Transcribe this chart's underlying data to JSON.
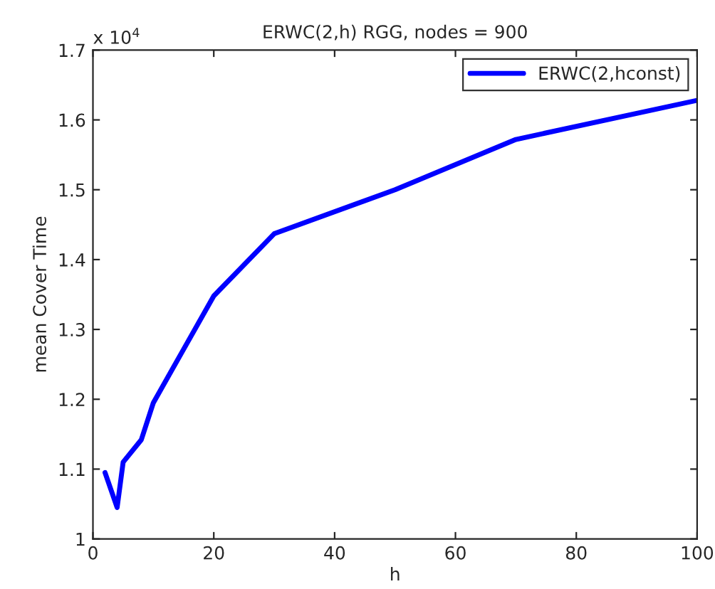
{
  "chart_data": {
    "type": "line",
    "title": "ERWC(2,h) RGG, nodes = 900",
    "xlabel": "h",
    "ylabel": "mean Cover Time",
    "annotations": [
      "x 10$^{4}$"
    ],
    "x": [
      2,
      4,
      5,
      8,
      10,
      20,
      30,
      50,
      70,
      100
    ],
    "series": [
      {
        "name": "ERWC(2,hconst)",
        "color": "#0000ff",
        "values": [
          1.095,
          1.045,
          1.11,
          1.142,
          1.195,
          1.348,
          1.437,
          1.5,
          1.572,
          1.628
        ]
      }
    ],
    "xlim": [
      0,
      100
    ],
    "xticks": [
      0,
      20,
      40,
      60,
      80,
      100
    ],
    "ylim": [
      1,
      1.7
    ],
    "yticks": [
      1,
      1.1,
      1.2,
      1.3,
      1.4,
      1.5,
      1.6,
      1.7
    ],
    "grid": false,
    "legend": "top right",
    "marker": "none",
    "line_style": "solid"
  }
}
